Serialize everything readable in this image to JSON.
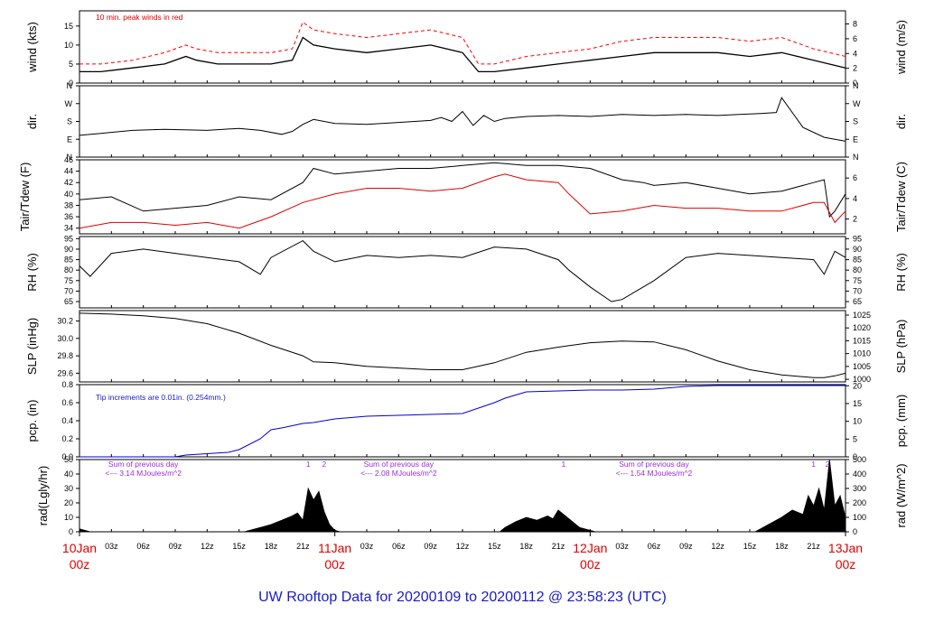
{
  "chart_data": {
    "type": "line",
    "title": "UW Rooftop Data for 20200109  to  20200112 @ 23:58:23  (UTC)",
    "x_axis": {
      "range_hours": [
        0,
        72
      ],
      "minor_ticks": [
        "03z",
        "06z",
        "09z",
        "12z",
        "15z",
        "18z",
        "21z",
        "03z",
        "06z",
        "09z",
        "12z",
        "15z",
        "18z",
        "21z",
        "03z",
        "06z",
        "09z",
        "12z",
        "15z",
        "18z",
        "21z"
      ],
      "day_labels": [
        {
          "day": "10Jan",
          "hour": "00z",
          "at": 0
        },
        {
          "day": "11Jan",
          "hour": "00z",
          "at": 24
        },
        {
          "day": "12Jan",
          "hour": "00z",
          "at": 48
        },
        {
          "day": "13Jan",
          "hour": "00z",
          "at": 72
        }
      ]
    },
    "panels": [
      {
        "id": "wind",
        "ylabel_left": "wind (kts)",
        "ylabel_right": "wind (m/s)",
        "ylim": [
          0,
          19
        ],
        "left_ticks": [
          0,
          5,
          10,
          15
        ],
        "right_ticks": [
          0,
          2,
          4,
          6,
          8
        ],
        "right_factor": 1.944,
        "annotation": "10 min. peak winds in red",
        "series": [
          {
            "name": "wind speed (kts)",
            "color": "#000000",
            "x": [
              0,
              2,
              5,
              8,
              10,
              11,
              13,
              15,
              18,
              20,
              21,
              22,
              24,
              27,
              30,
              33,
              36,
              37.5,
              39,
              42,
              45,
              48,
              51,
              54,
              57,
              60,
              63,
              66,
              69,
              72
            ],
            "y": [
              3,
              3,
              4,
              5,
              7,
              6,
              5,
              5,
              5,
              6,
              12,
              10,
              9,
              8,
              9,
              10,
              8,
              3,
              3,
              4,
              5,
              6,
              7,
              8,
              8,
              8,
              7,
              8,
              6,
              4
            ]
          },
          {
            "name": "10 min. peak winds",
            "color": "#ff0000",
            "x": [
              0,
              2,
              5,
              8,
              10,
              11,
              13,
              15,
              18,
              20,
              21,
              22,
              24,
              27,
              30,
              33,
              36,
              37.5,
              39,
              42,
              45,
              48,
              51,
              54,
              57,
              60,
              63,
              66,
              69,
              72
            ],
            "y": [
              5,
              5,
              6,
              8,
              10,
              9,
              8,
              8,
              8,
              9,
              16,
              14,
              13,
              12,
              13,
              14,
              12,
              5,
              5,
              7,
              8,
              9,
              11,
              12,
              12,
              12,
              11,
              12,
              9,
              7
            ]
          }
        ]
      },
      {
        "id": "dir",
        "ylabel_left": "dir.",
        "ylabel_right": "dir.",
        "ylim": [
          0,
          360
        ],
        "left_ticks": [
          "N",
          "E",
          "S",
          "W",
          "N"
        ],
        "right_ticks": [
          "N",
          "E",
          "S",
          "W",
          "N"
        ],
        "series": [
          {
            "name": "wind direction (deg)",
            "color": "#000000",
            "x": [
              0,
              2,
              5,
              8,
              12,
              15,
              17,
              19,
              20,
              21,
              22,
              24,
              27,
              30,
              33,
              34,
              35,
              36,
              37,
              38,
              39,
              40,
              42,
              45,
              48,
              51,
              54,
              57,
              60,
              62,
              64,
              65.5,
              66,
              68,
              70,
              72
            ],
            "y": [
              110,
              120,
              135,
              140,
              135,
              145,
              135,
              115,
              130,
              165,
              190,
              170,
              165,
              175,
              185,
              200,
              180,
              230,
              160,
              210,
              180,
              195,
              205,
              210,
              205,
              215,
              210,
              215,
              210,
              215,
              220,
              225,
              300,
              150,
              100,
              80
            ]
          }
        ]
      },
      {
        "id": "temp",
        "ylabel_left": "Tair/Tdew (F)",
        "ylabel_right": "Tair/Tdew (C)",
        "ylim": [
          33,
          46
        ],
        "left_ticks": [
          34,
          36,
          38,
          40,
          42,
          44,
          46
        ],
        "right_ticks": [
          2,
          4,
          6
        ],
        "series": [
          {
            "name": "Tair (F)",
            "color": "#000000",
            "x": [
              0,
              3,
              6,
              9,
              12,
              15,
              18,
              21,
              22,
              24,
              27,
              30,
              33,
              36,
              39,
              42,
              45,
              48,
              51,
              53,
              54,
              57,
              60,
              63,
              66,
              69,
              70,
              70.5,
              71,
              72
            ],
            "y": [
              39,
              39.5,
              37,
              37.5,
              38,
              39.5,
              39,
              42,
              44.5,
              43.5,
              44,
              44.5,
              44.5,
              45,
              45.5,
              45,
              45,
              44.5,
              42.5,
              42,
              41.5,
              42,
              41,
              40,
              40.5,
              42,
              42.5,
              36,
              37,
              40
            ]
          },
          {
            "name": "Tdew (F)",
            "color": "#e00000",
            "x": [
              0,
              3,
              6,
              9,
              12,
              15,
              18,
              21,
              24,
              27,
              30,
              33,
              36,
              39,
              40,
              42,
              45,
              46,
              48,
              51,
              54,
              57,
              60,
              63,
              66,
              69,
              70,
              71,
              72
            ],
            "y": [
              34,
              35,
              35,
              34.5,
              35,
              34,
              36,
              38.5,
              40,
              41,
              41,
              40.5,
              41,
              43,
              43.5,
              42.5,
              42,
              40,
              36.5,
              37,
              38,
              37.5,
              37.5,
              37,
              37,
              38.5,
              38.5,
              35,
              37
            ]
          }
        ]
      },
      {
        "id": "rh",
        "ylabel_left": "RH (%)",
        "ylabel_right": "RH (%)",
        "ylim": [
          62,
          96
        ],
        "left_ticks": [
          65,
          70,
          75,
          80,
          85,
          90,
          95
        ],
        "right_ticks": [
          65,
          70,
          75,
          80,
          85,
          90,
          95
        ],
        "series": [
          {
            "name": "relative humidity (%)",
            "color": "#000000",
            "x": [
              0,
              1,
              3,
              6,
              9,
              12,
              15,
              17,
              18,
              21,
              22,
              24,
              27,
              30,
              33,
              36,
              39,
              42,
              45,
              46,
              48,
              50,
              51,
              54,
              57,
              60,
              63,
              66,
              69,
              70,
              71,
              72
            ],
            "y": [
              82,
              77,
              88,
              90,
              88,
              86,
              84,
              78,
              86,
              94,
              89,
              84,
              87,
              86,
              87,
              86,
              91,
              90,
              85,
              80,
              72,
              65,
              66,
              75,
              86,
              88,
              87,
              86,
              85,
              78,
              89,
              86
            ]
          }
        ]
      },
      {
        "id": "slp",
        "ylabel_left": "SLP (inHg)",
        "ylabel_right": "SLP (hPa)",
        "ylim": [
          29.5,
          30.32
        ],
        "left_ticks": [
          29.6,
          29.8,
          30.0,
          30.2
        ],
        "right_ticks": [
          1000,
          1005,
          1010,
          1015,
          1020,
          1025
        ],
        "series": [
          {
            "name": "sea level pressure (inHg)",
            "color": "#000000",
            "x": [
              0,
              3,
              6,
              9,
              12,
              15,
              18,
              21,
              22,
              24,
              27,
              30,
              33,
              36,
              39,
              42,
              45,
              48,
              51,
              54,
              57,
              60,
              63,
              66,
              69,
              70,
              71,
              72
            ],
            "y": [
              30.29,
              30.28,
              30.26,
              30.23,
              30.17,
              30.06,
              29.92,
              29.8,
              29.73,
              29.72,
              29.68,
              29.66,
              29.64,
              29.64,
              29.72,
              29.84,
              29.9,
              29.95,
              29.97,
              29.96,
              29.87,
              29.74,
              29.64,
              29.58,
              29.55,
              29.55,
              29.57,
              29.6
            ]
          }
        ]
      },
      {
        "id": "pcp",
        "ylabel_left": "pcp. (in)",
        "ylabel_right": "pcp. (mm)",
        "ylim": [
          0,
          0.8
        ],
        "left_ticks": [
          0.0,
          0.2,
          0.4,
          0.6,
          0.8
        ],
        "right_ticks": [
          0,
          5,
          10,
          15,
          20
        ],
        "annotation": "Tip increments are 0.01in. (0.254mm.)",
        "series": [
          {
            "name": "cumulative precipitation (in)",
            "color": "#0000d0",
            "x": [
              0,
              9,
              10,
              14,
              15,
              17,
              18,
              19,
              21,
              22,
              24,
              27,
              30,
              33,
              36,
              39,
              40,
              42,
              45,
              48,
              51,
              54,
              57,
              60,
              63,
              66,
              69,
              72
            ],
            "y": [
              0,
              0,
              0.02,
              0.05,
              0.08,
              0.2,
              0.3,
              0.32,
              0.37,
              0.38,
              0.42,
              0.45,
              0.46,
              0.47,
              0.48,
              0.6,
              0.65,
              0.72,
              0.73,
              0.74,
              0.74,
              0.75,
              0.78,
              0.79,
              0.79,
              0.79,
              0.79,
              0.79
            ]
          }
        ]
      },
      {
        "id": "rad",
        "ylabel_left": "rad(Lgly/hr)",
        "ylabel_right": "rad (W/m^2)",
        "ylim": [
          0,
          50
        ],
        "left_ticks": [
          0,
          10,
          20,
          30,
          40,
          50
        ],
        "right_ticks": [
          0,
          100,
          200,
          300,
          400,
          500
        ],
        "annotations": [
          {
            "lines": [
              "Sum of previous day",
              "<--- 3.14 MJoules/m^2"
            ],
            "at": 6
          },
          {
            "lines": [
              "Sum of previous day",
              "<--- 2.08 MJoules/m^2"
            ],
            "at": 30
          },
          {
            "lines": [
              "Sum of previous day",
              "<--- 1.54 MJoules/m^2"
            ],
            "at": 54
          },
          {
            "lines": [
              "1"
            ],
            "at": 21.5
          },
          {
            "lines": [
              "2"
            ],
            "at": 23.0
          },
          {
            "lines": [
              "1"
            ],
            "at": 45.5
          },
          {
            "lines": [
              "1"
            ],
            "at": 69.0
          },
          {
            "lines": [
              "2"
            ],
            "at": 70.3
          }
        ],
        "series": [
          {
            "name": "solar radiation (Lgly/hr)",
            "color": "#000000",
            "fill": true,
            "x": [
              0,
              0.5,
              1,
              15.5,
              16,
              17,
              18,
              19,
              20,
              20.5,
              21,
              21.5,
              22,
              22.5,
              23,
              23.5,
              24,
              24.5,
              39.5,
              40,
              41,
              42,
              43,
              44,
              44.5,
              45,
              46,
              47,
              48,
              48.5,
              63.5,
              64,
              65,
              66,
              67,
              68,
              68.5,
              69,
              69.5,
              70,
              70.5,
              71,
              71.5,
              72
            ],
            "y": [
              2,
              1,
              0,
              0,
              1,
              3,
              5,
              8,
              11,
              13,
              8,
              30,
              22,
              28,
              14,
              5,
              1,
              0,
              0,
              3,
              7,
              10,
              8,
              11,
              9,
              15,
              9,
              3,
              1,
              0,
              0,
              2,
              6,
              10,
              15,
              12,
              25,
              18,
              30,
              15,
              50,
              18,
              25,
              10
            ]
          }
        ]
      }
    ]
  }
}
